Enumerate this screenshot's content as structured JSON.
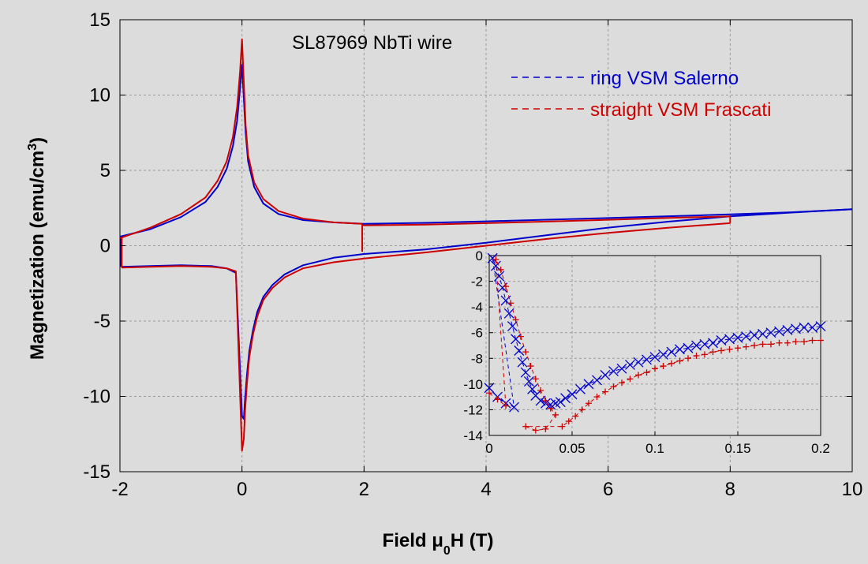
{
  "chart_data": {
    "type": "line",
    "background_color": "#dcdcdc",
    "annotation": "SL87969 NbTi wire",
    "xlabel": {
      "prefix": "Field ",
      "mu": "μ",
      "sub": "0",
      "suffix": "H (T)"
    },
    "ylabel": {
      "prefix": "Magnetization (emu/cm",
      "sup": "3",
      "suffix": ")"
    },
    "xlim": [
      -2,
      10
    ],
    "ylim": [
      -15,
      15
    ],
    "xticks": [
      "-2",
      "0",
      "2",
      "4",
      "6",
      "8",
      "10"
    ],
    "yticks": [
      "15",
      "10",
      "5",
      "0",
      "-5",
      "-10",
      "-15"
    ],
    "grid": true,
    "legend_position": "top-right",
    "series": [
      {
        "name": "ring VSM Salerno",
        "color": "#0000cc",
        "branches": [
          {
            "x": [
              -2,
              -1.5,
              -1,
              -0.6,
              -0.4,
              -0.25,
              -0.15,
              -0.08,
              -0.03,
              0,
              0.03,
              0.06,
              0.1,
              0.2,
              0.35,
              0.6,
              1,
              1.5,
              2,
              3,
              4,
              5,
              6,
              7,
              8,
              9,
              10
            ],
            "y": [
              0.6,
              1.1,
              1.9,
              2.9,
              3.9,
              5.1,
              6.6,
              8.3,
              10.5,
              12.0,
              9.8,
              7.5,
              5.6,
              3.9,
              2.8,
              2.1,
              1.7,
              1.55,
              1.45,
              1.52,
              1.62,
              1.73,
              1.84,
              1.96,
              2.08,
              2.22,
              2.42
            ]
          },
          {
            "x": [
              10,
              9,
              8,
              7,
              6,
              5,
              4,
              3,
              2,
              1.5,
              1,
              0.7,
              0.5,
              0.35,
              0.25,
              0.18,
              0.12,
              0.08,
              0.05,
              0.03,
              0,
              -0.1,
              -0.25,
              -0.5,
              -1,
              -1.5,
              -1.98
            ],
            "y": [
              2.42,
              2.2,
              1.95,
              1.6,
              1.2,
              0.7,
              0.2,
              -0.25,
              -0.55,
              -0.8,
              -1.3,
              -1.9,
              -2.6,
              -3.4,
              -4.4,
              -5.6,
              -7.0,
              -8.6,
              -10.2,
              -11.5,
              -11.3,
              -1.8,
              -1.5,
              -1.35,
              -1.3,
              -1.35,
              -1.4
            ]
          },
          {
            "x": [
              -1.98,
              -1.98
            ],
            "y": [
              -1.4,
              0.6
            ]
          }
        ]
      },
      {
        "name": "straight VSM Frascati",
        "color": "#cc0000",
        "branches": [
          {
            "x": [
              -2,
              -1.5,
              -1,
              -0.6,
              -0.4,
              -0.25,
              -0.15,
              -0.08,
              -0.03,
              0,
              0.03,
              0.06,
              0.1,
              0.2,
              0.35,
              0.6,
              1,
              1.5,
              1.97
            ],
            "y": [
              0.5,
              1.2,
              2.1,
              3.2,
              4.3,
              5.6,
              7.2,
              9.2,
              11.6,
              13.7,
              10.8,
              8.0,
              6.0,
              4.2,
              3.1,
              2.3,
              1.8,
              1.55,
              1.45
            ]
          },
          {
            "x": [
              1.97,
              1.97
            ],
            "y": [
              1.45,
              -0.4
            ]
          },
          {
            "x": [
              1.97,
              3,
              4,
              5,
              6,
              7,
              8
            ],
            "y": [
              1.35,
              1.4,
              1.5,
              1.6,
              1.72,
              1.85,
              1.95
            ]
          },
          {
            "x": [
              8,
              8
            ],
            "y": [
              1.95,
              1.5
            ]
          },
          {
            "x": [
              8,
              7,
              6,
              5,
              4,
              3,
              2,
              1.5,
              1,
              0.7,
              0.5,
              0.35,
              0.25,
              0.18,
              0.12,
              0.08,
              0.05,
              0.03,
              0,
              -0.1,
              -0.25,
              -0.5,
              -1,
              -1.5,
              -1.97
            ],
            "y": [
              1.5,
              1.2,
              0.85,
              0.45,
              0.0,
              -0.45,
              -0.85,
              -1.1,
              -1.5,
              -2.1,
              -2.8,
              -3.6,
              -4.7,
              -5.9,
              -7.4,
              -9.2,
              -11.0,
              -12.8,
              -13.6,
              -1.7,
              -1.5,
              -1.4,
              -1.35,
              -1.4,
              -1.45
            ]
          },
          {
            "x": [
              -1.97,
              -1.97
            ],
            "y": [
              -1.45,
              0.5
            ]
          }
        ]
      }
    ],
    "inset": {
      "xlim": [
        0,
        0.2
      ],
      "ylim": [
        -14,
        0
      ],
      "xticks": [
        "0",
        "0.05",
        "0.1",
        "0.15",
        "0.2"
      ],
      "yticks": [
        "0",
        "-2",
        "-4",
        "-6",
        "-8",
        "-10",
        "-12",
        "-14"
      ],
      "series": [
        {
          "name": "ring VSM Salerno",
          "color": "#0000cc",
          "marker": "x",
          "points": [
            [
              0,
              -10.3
            ],
            [
              0.005,
              -11.0
            ],
            [
              0.01,
              -11.5
            ],
            [
              0.015,
              -11.8
            ],
            [
              0.002,
              -0.2
            ],
            [
              0.004,
              -0.8
            ],
            [
              0.006,
              -1.6
            ],
            [
              0.008,
              -2.5
            ],
            [
              0.01,
              -3.5
            ],
            [
              0.012,
              -4.5
            ],
            [
              0.014,
              -5.5
            ],
            [
              0.016,
              -6.5
            ],
            [
              0.018,
              -7.4
            ],
            [
              0.02,
              -8.3
            ],
            [
              0.022,
              -9.1
            ],
            [
              0.024,
              -9.8
            ],
            [
              0.026,
              -10.4
            ],
            [
              0.028,
              -10.9
            ],
            [
              0.031,
              -11.3
            ],
            [
              0.034,
              -11.5
            ],
            [
              0.037,
              -11.6
            ],
            [
              0.04,
              -11.5
            ],
            [
              0.043,
              -11.4
            ],
            [
              0.046,
              -11.1
            ],
            [
              0.05,
              -10.8
            ],
            [
              0.055,
              -10.4
            ],
            [
              0.06,
              -10.0
            ],
            [
              0.065,
              -9.7
            ],
            [
              0.07,
              -9.3
            ],
            [
              0.075,
              -9.0
            ],
            [
              0.08,
              -8.8
            ],
            [
              0.085,
              -8.5
            ],
            [
              0.09,
              -8.3
            ],
            [
              0.095,
              -8.1
            ],
            [
              0.1,
              -7.9
            ],
            [
              0.105,
              -7.7
            ],
            [
              0.11,
              -7.5
            ],
            [
              0.115,
              -7.3
            ],
            [
              0.12,
              -7.2
            ],
            [
              0.125,
              -7.0
            ],
            [
              0.13,
              -6.9
            ],
            [
              0.135,
              -6.8
            ],
            [
              0.14,
              -6.6
            ],
            [
              0.145,
              -6.5
            ],
            [
              0.15,
              -6.4
            ],
            [
              0.155,
              -6.3
            ],
            [
              0.16,
              -6.2
            ],
            [
              0.165,
              -6.1
            ],
            [
              0.17,
              -6.0
            ],
            [
              0.175,
              -5.9
            ],
            [
              0.18,
              -5.8
            ],
            [
              0.185,
              -5.7
            ],
            [
              0.19,
              -5.6
            ],
            [
              0.195,
              -5.6
            ],
            [
              0.2,
              -5.5
            ]
          ]
        },
        {
          "name": "straight VSM Frascati",
          "color": "#cc0000",
          "marker": "+",
          "points": [
            [
              0,
              -10.7
            ],
            [
              0.005,
              -11.2
            ],
            [
              0.01,
              -11.7
            ],
            [
              0.004,
              -0.3
            ],
            [
              0.007,
              -1.1
            ],
            [
              0.01,
              -2.4
            ],
            [
              0.013,
              -3.7
            ],
            [
              0.016,
              -5.0
            ],
            [
              0.019,
              -6.3
            ],
            [
              0.022,
              -7.5
            ],
            [
              0.025,
              -8.6
            ],
            [
              0.028,
              -9.6
            ],
            [
              0.031,
              -10.5
            ],
            [
              0.034,
              -11.3
            ],
            [
              0.037,
              -11.9
            ],
            [
              0.04,
              -12.4
            ],
            [
              0.034,
              -13.5
            ],
            [
              0.028,
              -13.6
            ],
            [
              0.022,
              -13.3
            ],
            [
              0.044,
              -13.3
            ],
            [
              0.048,
              -12.9
            ],
            [
              0.052,
              -12.5
            ],
            [
              0.056,
              -12.0
            ],
            [
              0.06,
              -11.5
            ],
            [
              0.065,
              -11.0
            ],
            [
              0.07,
              -10.6
            ],
            [
              0.075,
              -10.2
            ],
            [
              0.08,
              -9.9
            ],
            [
              0.085,
              -9.6
            ],
            [
              0.09,
              -9.3
            ],
            [
              0.095,
              -9.1
            ],
            [
              0.1,
              -8.8
            ],
            [
              0.105,
              -8.6
            ],
            [
              0.11,
              -8.4
            ],
            [
              0.115,
              -8.2
            ],
            [
              0.12,
              -8.0
            ],
            [
              0.125,
              -7.8
            ],
            [
              0.13,
              -7.7
            ],
            [
              0.135,
              -7.5
            ],
            [
              0.14,
              -7.4
            ],
            [
              0.145,
              -7.3
            ],
            [
              0.15,
              -7.2
            ],
            [
              0.155,
              -7.1
            ],
            [
              0.16,
              -7.0
            ],
            [
              0.165,
              -6.9
            ],
            [
              0.17,
              -6.9
            ],
            [
              0.175,
              -6.8
            ],
            [
              0.18,
              -6.8
            ],
            [
              0.185,
              -6.7
            ],
            [
              0.19,
              -6.7
            ],
            [
              0.195,
              -6.6
            ],
            [
              0.2,
              -6.6
            ]
          ]
        }
      ]
    }
  }
}
